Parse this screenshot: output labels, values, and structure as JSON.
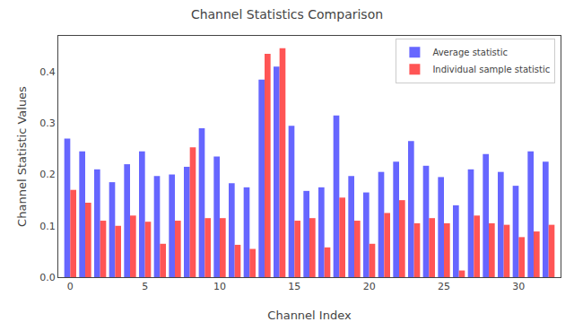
{
  "chart_data": {
    "type": "bar",
    "title": "Channel Statistics Comparison",
    "x_label": "Channel Index",
    "y_label": "Channel Statistic Values",
    "x": [
      0,
      1,
      2,
      3,
      4,
      5,
      6,
      7,
      8,
      9,
      10,
      11,
      12,
      13,
      14,
      15,
      16,
      17,
      18,
      19,
      20,
      21,
      22,
      23,
      24,
      25,
      26,
      27,
      28,
      29,
      30,
      31,
      32
    ],
    "series": [
      {
        "name": "Average statistic",
        "color": "#6666ff",
        "values": [
          0.27,
          0.245,
          0.21,
          0.185,
          0.22,
          0.245,
          0.197,
          0.2,
          0.215,
          0.29,
          0.235,
          0.183,
          0.175,
          0.385,
          0.41,
          0.295,
          0.168,
          0.175,
          0.315,
          0.197,
          0.165,
          0.205,
          0.225,
          0.265,
          0.217,
          0.195,
          0.14,
          0.21,
          0.24,
          0.205,
          0.178,
          0.245,
          0.225
        ]
      },
      {
        "name": "Individual sample statistic",
        "color": "#ff5555",
        "values": [
          0.17,
          0.145,
          0.11,
          0.1,
          0.12,
          0.108,
          0.065,
          0.11,
          0.253,
          0.115,
          0.115,
          0.063,
          0.055,
          0.435,
          0.446,
          0.11,
          0.115,
          0.058,
          0.155,
          0.11,
          0.065,
          0.125,
          0.15,
          0.105,
          0.115,
          0.105,
          0.013,
          0.12,
          0.105,
          0.102,
          0.078,
          0.089,
          0.102
        ]
      }
    ],
    "xlim": [
      -0.8,
      32.8
    ],
    "xticks": [
      0,
      5,
      10,
      15,
      20,
      25,
      30
    ],
    "ylim": [
      0.0,
      0.47
    ],
    "yticks": [
      {
        "value": 0,
        "label": "0.0"
      },
      0.1,
      0.2,
      0.3,
      0.4
    ],
    "grid": false,
    "legend": "upper right"
  }
}
